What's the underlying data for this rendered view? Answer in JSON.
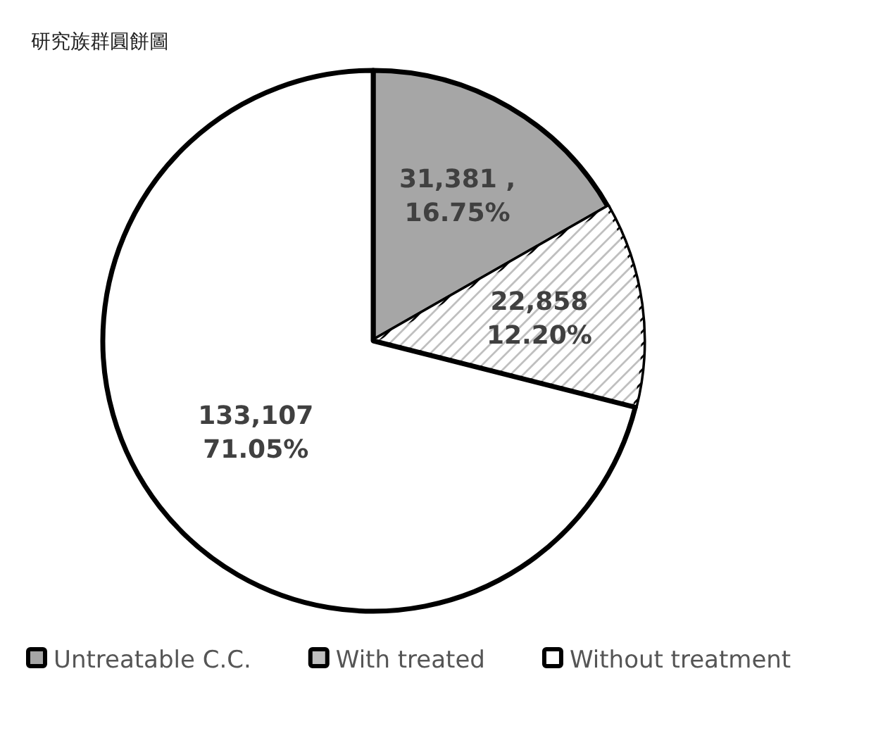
{
  "chart_data": {
    "type": "pie",
    "title": "研究族群圓餅圖",
    "categories": [
      "Untreatable C.C.",
      "With treated",
      "Without treatment"
    ],
    "values": [
      31381,
      22858,
      133107
    ],
    "value_labels": [
      "31,381 ,\n16.75%",
      "22,858\n12.20%",
      "133,107\n71.05%"
    ],
    "colors": [
      "#a6a6a6",
      "#bfbfbf",
      "#ffffff"
    ],
    "legend": "bottom"
  }
}
